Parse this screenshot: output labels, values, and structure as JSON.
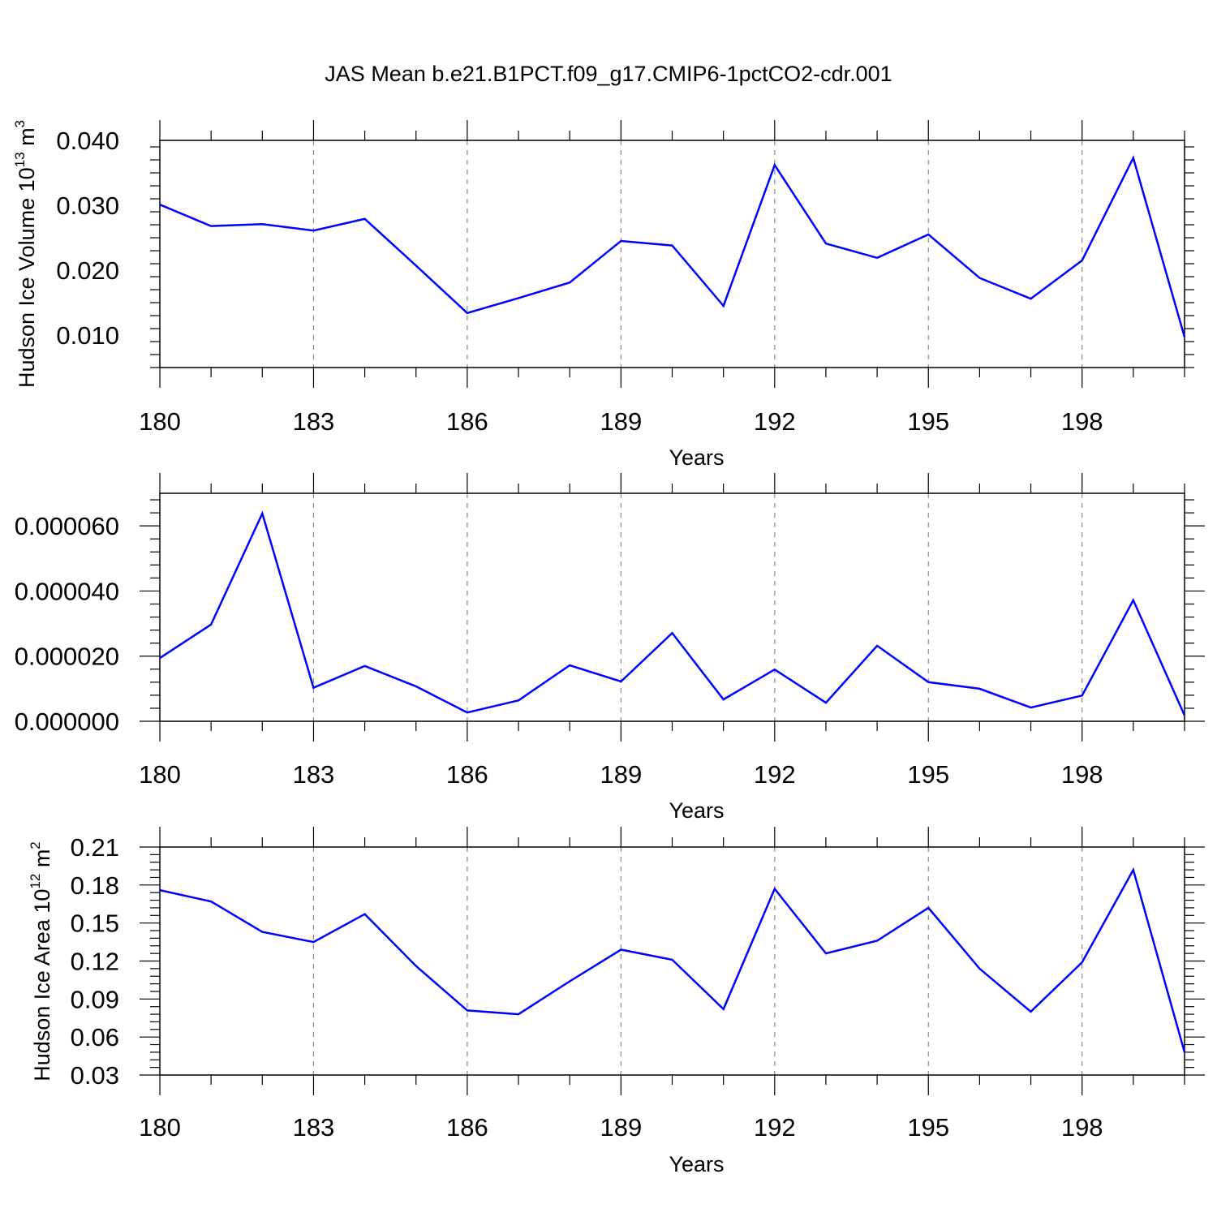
{
  "title": "JAS Mean b.e21.B1PCT.f09_g17.CMIP6-1pctCO2-cdr.001",
  "colors": {
    "line": "#0000ff",
    "axis": "#000000",
    "grid": "#888888"
  },
  "chart_data": [
    {
      "type": "line",
      "xlabel": "Years",
      "ylabel": {
        "text": "Hudson Ice Volume 10",
        "exp": "13",
        "unit": " m",
        "unit_exp": "3"
      },
      "x_tick_labels": [
        "180",
        "183",
        "186",
        "189",
        "192",
        "195",
        "198"
      ],
      "y_tick_labels": [
        "0.010",
        "0.020",
        "0.030",
        "0.040"
      ],
      "y_ticks": [
        0.01,
        0.02,
        0.03,
        0.04
      ],
      "xlim": [
        180,
        200
      ],
      "ylim": [
        0.005,
        0.04
      ],
      "grid": "vertical dashed",
      "x": [
        180,
        181,
        182,
        183,
        184,
        185,
        186,
        187,
        188,
        189,
        190,
        191,
        192,
        193,
        194,
        195,
        196,
        197,
        198,
        199,
        200
      ],
      "values": [
        0.0301,
        0.0268,
        0.0271,
        0.0261,
        0.0279,
        0.0207,
        0.0134,
        0.0157,
        0.0181,
        0.0245,
        0.0238,
        0.0145,
        0.0362,
        0.0241,
        0.0219,
        0.0255,
        0.0188,
        0.0156,
        0.0215,
        0.0373,
        0.0097
      ]
    },
    {
      "type": "line",
      "xlabel": "Years",
      "ylabel": null,
      "x_tick_labels": [
        "180",
        "183",
        "186",
        "189",
        "192",
        "195",
        "198"
      ],
      "y_tick_labels": [
        "0.000000",
        "0.000020",
        "0.000040",
        "0.000060"
      ],
      "y_ticks": [
        0,
        2e-05,
        4e-05,
        6e-05
      ],
      "xlim": [
        180,
        200
      ],
      "ylim": [
        0,
        7e-05
      ],
      "grid": "vertical dashed",
      "x": [
        180,
        181,
        182,
        183,
        184,
        185,
        186,
        187,
        188,
        189,
        190,
        191,
        192,
        193,
        194,
        195,
        196,
        197,
        198,
        199,
        200
      ],
      "values": [
        1.94e-05,
        2.97e-05,
        6.38e-05,
        1.03e-05,
        1.7e-05,
        1.07e-05,
        2.7e-06,
        6.4e-06,
        1.72e-05,
        1.22e-05,
        2.71e-05,
        6.7e-06,
        1.59e-05,
        5.7e-06,
        2.32e-05,
        1.2e-05,
        1e-05,
        4.2e-06,
        7.9e-06,
        3.72e-05,
        1.8e-06
      ]
    },
    {
      "type": "line",
      "xlabel": "Years",
      "ylabel": {
        "text": "Hudson Ice Area 10",
        "exp": "12",
        "unit": " m",
        "unit_exp": "2"
      },
      "x_tick_labels": [
        "180",
        "183",
        "186",
        "189",
        "192",
        "195",
        "198"
      ],
      "y_tick_labels": [
        "0.03",
        "0.06",
        "0.09",
        "0.12",
        "0.15",
        "0.18",
        "0.21"
      ],
      "y_ticks": [
        0.03,
        0.06,
        0.09,
        0.12,
        0.15,
        0.18,
        0.21
      ],
      "xlim": [
        180,
        200
      ],
      "ylim": [
        0.03,
        0.21
      ],
      "grid": "vertical dashed",
      "x": [
        180,
        181,
        182,
        183,
        184,
        185,
        186,
        187,
        188,
        189,
        190,
        191,
        192,
        193,
        194,
        195,
        196,
        197,
        198,
        199,
        200
      ],
      "values": [
        0.176,
        0.167,
        0.143,
        0.135,
        0.157,
        0.116,
        0.081,
        0.078,
        0.104,
        0.129,
        0.121,
        0.082,
        0.177,
        0.126,
        0.136,
        0.162,
        0.114,
        0.08,
        0.119,
        0.192,
        0.048
      ]
    }
  ]
}
